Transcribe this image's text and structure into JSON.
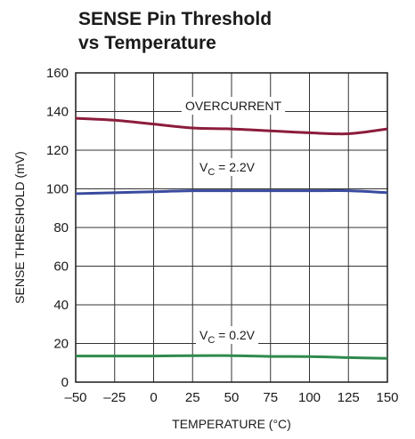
{
  "chart_data": {
    "type": "line",
    "title_lines": [
      "SENSE Pin Threshold",
      "vs Temperature"
    ],
    "xlabel": "TEMPERATURE (°C)",
    "ylabel": "SENSE THRESHOLD (mV)",
    "x": [
      -50,
      -25,
      0,
      25,
      50,
      75,
      100,
      125,
      150
    ],
    "series": [
      {
        "name": "OVERCURRENT",
        "color": "#8c1c3c",
        "values": [
          136.5,
          135.5,
          133.5,
          131.5,
          131,
          130,
          129,
          128.5,
          131
        ]
      },
      {
        "name": "VC = 2.2V",
        "color": "#3a4a9e",
        "values": [
          97.5,
          98,
          98.5,
          99,
          99,
          99,
          99,
          99,
          98
        ]
      },
      {
        "name": "VC = 0.2V",
        "color": "#2f8a4c",
        "values": [
          13.5,
          13.5,
          13.5,
          13.7,
          13.7,
          13.3,
          13.2,
          12.7,
          12.3
        ]
      }
    ],
    "xlim": [
      -50,
      150
    ],
    "ylim": [
      0,
      160
    ],
    "xticks": [
      {
        "value": -50,
        "label": "–50"
      },
      {
        "value": -25,
        "label": "–25"
      },
      0,
      25,
      50,
      75,
      100,
      125,
      150
    ],
    "yticks": [
      0,
      20,
      40,
      60,
      80,
      100,
      120,
      140,
      160
    ],
    "grid": true
  }
}
